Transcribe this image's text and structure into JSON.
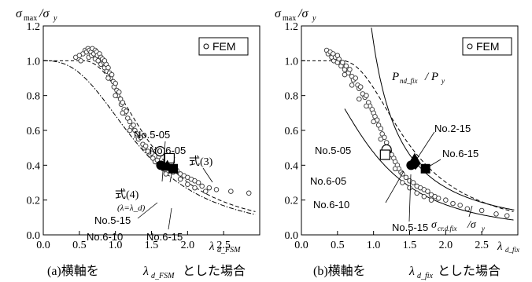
{
  "chart_data": [
    {
      "type": "scatter",
      "panel_caption": "(a)横軸を",
      "panel_caption_sym": "λ",
      "panel_caption_sub": "d_FSM",
      "panel_caption_tail": "とした場合",
      "ylabel_main": "σ",
      "ylabel_sub1": "max",
      "ylabel_slash": "/σ",
      "ylabel_sub2": "y",
      "xlabel_main": "λ",
      "xlabel_sub": "d_FSM",
      "xlim": [
        0,
        3.0
      ],
      "ylim": [
        0,
        1.2
      ],
      "xticks": [
        "0.0",
        "0.5",
        "1.0",
        "1.5",
        "2.0",
        "2.5"
      ],
      "yticks": [
        "0.0",
        "0.2",
        "0.4",
        "0.6",
        "0.8",
        "1.0",
        "1.2"
      ],
      "grid": false,
      "legend": {
        "label": "FEM",
        "position": "top-right"
      },
      "fem_points": [
        [
          0.55,
          1.04
        ],
        [
          0.58,
          1.06
        ],
        [
          0.6,
          1.05
        ],
        [
          0.62,
          1.07
        ],
        [
          0.63,
          1.02
        ],
        [
          0.64,
          1.06
        ],
        [
          0.66,
          1.05
        ],
        [
          0.67,
          1.03
        ],
        [
          0.68,
          1.07
        ],
        [
          0.7,
          1.04
        ],
        [
          0.72,
          1.06
        ],
        [
          0.72,
          1.01
        ],
        [
          0.74,
          1.05
        ],
        [
          0.75,
          1.03
        ],
        [
          0.76,
          1.0
        ],
        [
          0.78,
          1.04
        ],
        [
          0.8,
          1.02
        ],
        [
          0.8,
          0.98
        ],
        [
          0.82,
          1.01
        ],
        [
          0.84,
          0.99
        ],
        [
          0.85,
          0.96
        ],
        [
          0.87,
          0.98
        ],
        [
          0.88,
          0.94
        ],
        [
          0.9,
          0.96
        ],
        [
          0.92,
          0.93
        ],
        [
          0.93,
          0.9
        ],
        [
          0.95,
          0.92
        ],
        [
          0.97,
          0.88
        ],
        [
          0.98,
          0.85
        ],
        [
          1.0,
          0.87
        ],
        [
          1.02,
          0.83
        ],
        [
          1.03,
          0.8
        ],
        [
          1.05,
          0.82
        ],
        [
          1.07,
          0.78
        ],
        [
          1.08,
          0.75
        ],
        [
          1.1,
          0.76
        ],
        [
          1.12,
          0.72
        ],
        [
          1.13,
          0.7
        ],
        [
          1.15,
          0.71
        ],
        [
          1.17,
          0.67
        ],
        [
          1.2,
          0.65
        ],
        [
          1.22,
          0.62
        ],
        [
          1.25,
          0.63
        ],
        [
          1.27,
          0.6
        ],
        [
          1.3,
          0.58
        ],
        [
          1.32,
          0.55
        ],
        [
          1.35,
          0.56
        ],
        [
          1.38,
          0.52
        ],
        [
          1.4,
          0.5
        ],
        [
          1.42,
          0.51
        ],
        [
          1.45,
          0.48
        ],
        [
          1.48,
          0.46
        ],
        [
          1.5,
          0.47
        ],
        [
          1.52,
          0.44
        ],
        [
          1.55,
          0.42
        ],
        [
          1.58,
          0.43
        ],
        [
          1.6,
          0.45
        ],
        [
          1.62,
          0.41
        ],
        [
          1.65,
          0.4
        ],
        [
          1.68,
          0.39
        ],
        [
          1.7,
          0.42
        ],
        [
          1.75,
          0.38
        ],
        [
          1.8,
          0.36
        ],
        [
          1.85,
          0.37
        ],
        [
          1.9,
          0.35
        ],
        [
          1.95,
          0.34
        ],
        [
          2.0,
          0.33
        ],
        [
          2.05,
          0.32
        ],
        [
          2.1,
          0.31
        ],
        [
          2.15,
          0.3
        ],
        [
          2.2,
          0.28
        ],
        [
          2.3,
          0.27
        ],
        [
          2.4,
          0.26
        ],
        [
          2.6,
          0.25
        ],
        [
          2.85,
          0.24
        ],
        [
          0.45,
          1.02
        ],
        [
          0.5,
          1.03
        ],
        [
          0.52,
          1.0
        ],
        [
          0.85,
          1.0
        ],
        [
          0.9,
          0.9
        ],
        [
          1.0,
          0.8
        ],
        [
          1.1,
          0.7
        ],
        [
          1.2,
          0.6
        ],
        [
          1.7,
          0.35
        ],
        [
          1.9,
          0.32
        ],
        [
          2.0,
          0.29
        ],
        [
          2.1,
          0.27
        ],
        [
          2.25,
          0.25
        ]
      ],
      "marked_points": [
        {
          "label": "No.5-05",
          "x": 1.62,
          "y": 0.48,
          "marker": "open-circle"
        },
        {
          "label": "No.6-05",
          "x": 1.75,
          "y": 0.44,
          "marker": "open-square"
        },
        {
          "label": "No.5-15",
          "x": 1.63,
          "y": 0.4,
          "marker": "filled-circle"
        },
        {
          "label": "No.6-10",
          "x": 1.72,
          "y": 0.39,
          "marker": "filled-triangle"
        },
        {
          "label": "No.6-15",
          "x": 1.8,
          "y": 0.38,
          "marker": "filled-square"
        }
      ],
      "annotations": [
        {
          "text": "式(4)",
          "sub": "(λ=λ_d)"
        },
        {
          "text": "式(3)"
        }
      ],
      "curves": [
        "dashed: 式(3)",
        "dash-dot: 式(4)"
      ]
    },
    {
      "type": "scatter",
      "panel_caption": "(b)横軸を",
      "panel_caption_sym": "λ",
      "panel_caption_sub": "d_fix",
      "panel_caption_tail": "とした場合",
      "ylabel_main": "σ",
      "ylabel_sub1": "max",
      "ylabel_slash": "/σ",
      "ylabel_sub2": "y",
      "xlabel_main": "λ",
      "xlabel_sub": "d_fix",
      "xlim": [
        0,
        3.0
      ],
      "ylim": [
        0,
        1.2
      ],
      "xticks": [
        "0.0",
        "0.5",
        "1.0",
        "1.5",
        "2.0",
        "2.5"
      ],
      "yticks": [
        "0.0",
        "0.2",
        "0.4",
        "0.6",
        "0.8",
        "1.0",
        "1.2"
      ],
      "grid": false,
      "legend": {
        "label": "FEM",
        "position": "top-right"
      },
      "fem_points": [
        [
          0.35,
          1.06
        ],
        [
          0.37,
          1.04
        ],
        [
          0.4,
          1.05
        ],
        [
          0.42,
          1.02
        ],
        [
          0.44,
          1.04
        ],
        [
          0.45,
          1.0
        ],
        [
          0.47,
          1.02
        ],
        [
          0.5,
          0.99
        ],
        [
          0.52,
          1.01
        ],
        [
          0.55,
          0.97
        ],
        [
          0.57,
          0.99
        ],
        [
          0.6,
          0.95
        ],
        [
          0.62,
          0.97
        ],
        [
          0.65,
          0.93
        ],
        [
          0.67,
          0.95
        ],
        [
          0.7,
          0.91
        ],
        [
          0.72,
          0.89
        ],
        [
          0.75,
          0.9
        ],
        [
          0.78,
          0.86
        ],
        [
          0.8,
          0.84
        ],
        [
          0.82,
          0.85
        ],
        [
          0.85,
          0.81
        ],
        [
          0.88,
          0.79
        ],
        [
          0.9,
          0.8
        ],
        [
          0.93,
          0.76
        ],
        [
          0.95,
          0.74
        ],
        [
          0.98,
          0.72
        ],
        [
          1.0,
          0.7
        ],
        [
          1.02,
          0.68
        ],
        [
          1.05,
          0.66
        ],
        [
          1.07,
          0.63
        ],
        [
          1.1,
          0.61
        ],
        [
          1.12,
          0.58
        ],
        [
          1.15,
          0.56
        ],
        [
          1.18,
          0.53
        ],
        [
          1.2,
          0.5
        ],
        [
          1.22,
          0.48
        ],
        [
          1.25,
          0.46
        ],
        [
          1.28,
          0.44
        ],
        [
          1.3,
          0.42
        ],
        [
          1.33,
          0.4
        ],
        [
          1.35,
          0.38
        ],
        [
          1.38,
          0.36
        ],
        [
          1.4,
          0.35
        ],
        [
          1.45,
          0.33
        ],
        [
          1.5,
          0.31
        ],
        [
          1.55,
          0.3
        ],
        [
          1.6,
          0.28
        ],
        [
          1.65,
          0.27
        ],
        [
          1.7,
          0.26
        ],
        [
          1.75,
          0.25
        ],
        [
          1.8,
          0.23
        ],
        [
          1.85,
          0.22
        ],
        [
          1.9,
          0.21
        ],
        [
          2.0,
          0.2
        ],
        [
          2.1,
          0.18
        ],
        [
          2.2,
          0.17
        ],
        [
          2.3,
          0.15
        ],
        [
          2.5,
          0.14
        ],
        [
          2.7,
          0.12
        ],
        [
          2.85,
          0.11
        ],
        [
          0.5,
          1.03
        ],
        [
          0.6,
          0.92
        ],
        [
          0.7,
          0.86
        ],
        [
          0.8,
          0.78
        ],
        [
          0.9,
          0.74
        ],
        [
          1.0,
          0.65
        ],
        [
          1.1,
          0.55
        ],
        [
          1.2,
          0.45
        ],
        [
          1.3,
          0.38
        ],
        [
          1.4,
          0.3
        ],
        [
          1.5,
          0.27
        ],
        [
          1.6,
          0.24
        ],
        [
          1.7,
          0.22
        ],
        [
          1.8,
          0.2
        ]
      ],
      "marked_points": [
        {
          "label": "No.5-05",
          "x": 1.18,
          "y": 0.49,
          "marker": "open-circle"
        },
        {
          "label": "No.6-05",
          "x": 1.16,
          "y": 0.46,
          "marker": "open-square"
        },
        {
          "label": "No.2-15",
          "x": 1.57,
          "y": 0.43,
          "marker": "filled-triangle"
        },
        {
          "label": "No.6-10",
          "x": 1.52,
          "y": 0.4,
          "marker": "filled-circle"
        },
        {
          "label": "No.5-15",
          "x": 1.58,
          "y": 0.41,
          "marker": "filled-diamond"
        },
        {
          "label": "No.6-15",
          "x": 1.72,
          "y": 0.38,
          "marker": "filled-square"
        }
      ],
      "annotations": [
        {
          "text": "P",
          "sub": "nd_fix",
          "tail": "/ P",
          "tail_sub": "y"
        },
        {
          "text": "σ",
          "sub": "cr.d.fix",
          "tail": "/σ",
          "tail_sub": "y"
        }
      ],
      "curves": [
        "solid: P_nd_fix / P_y",
        "dashed",
        "solid: σ_cr.d.fix / σ_y"
      ]
    }
  ]
}
